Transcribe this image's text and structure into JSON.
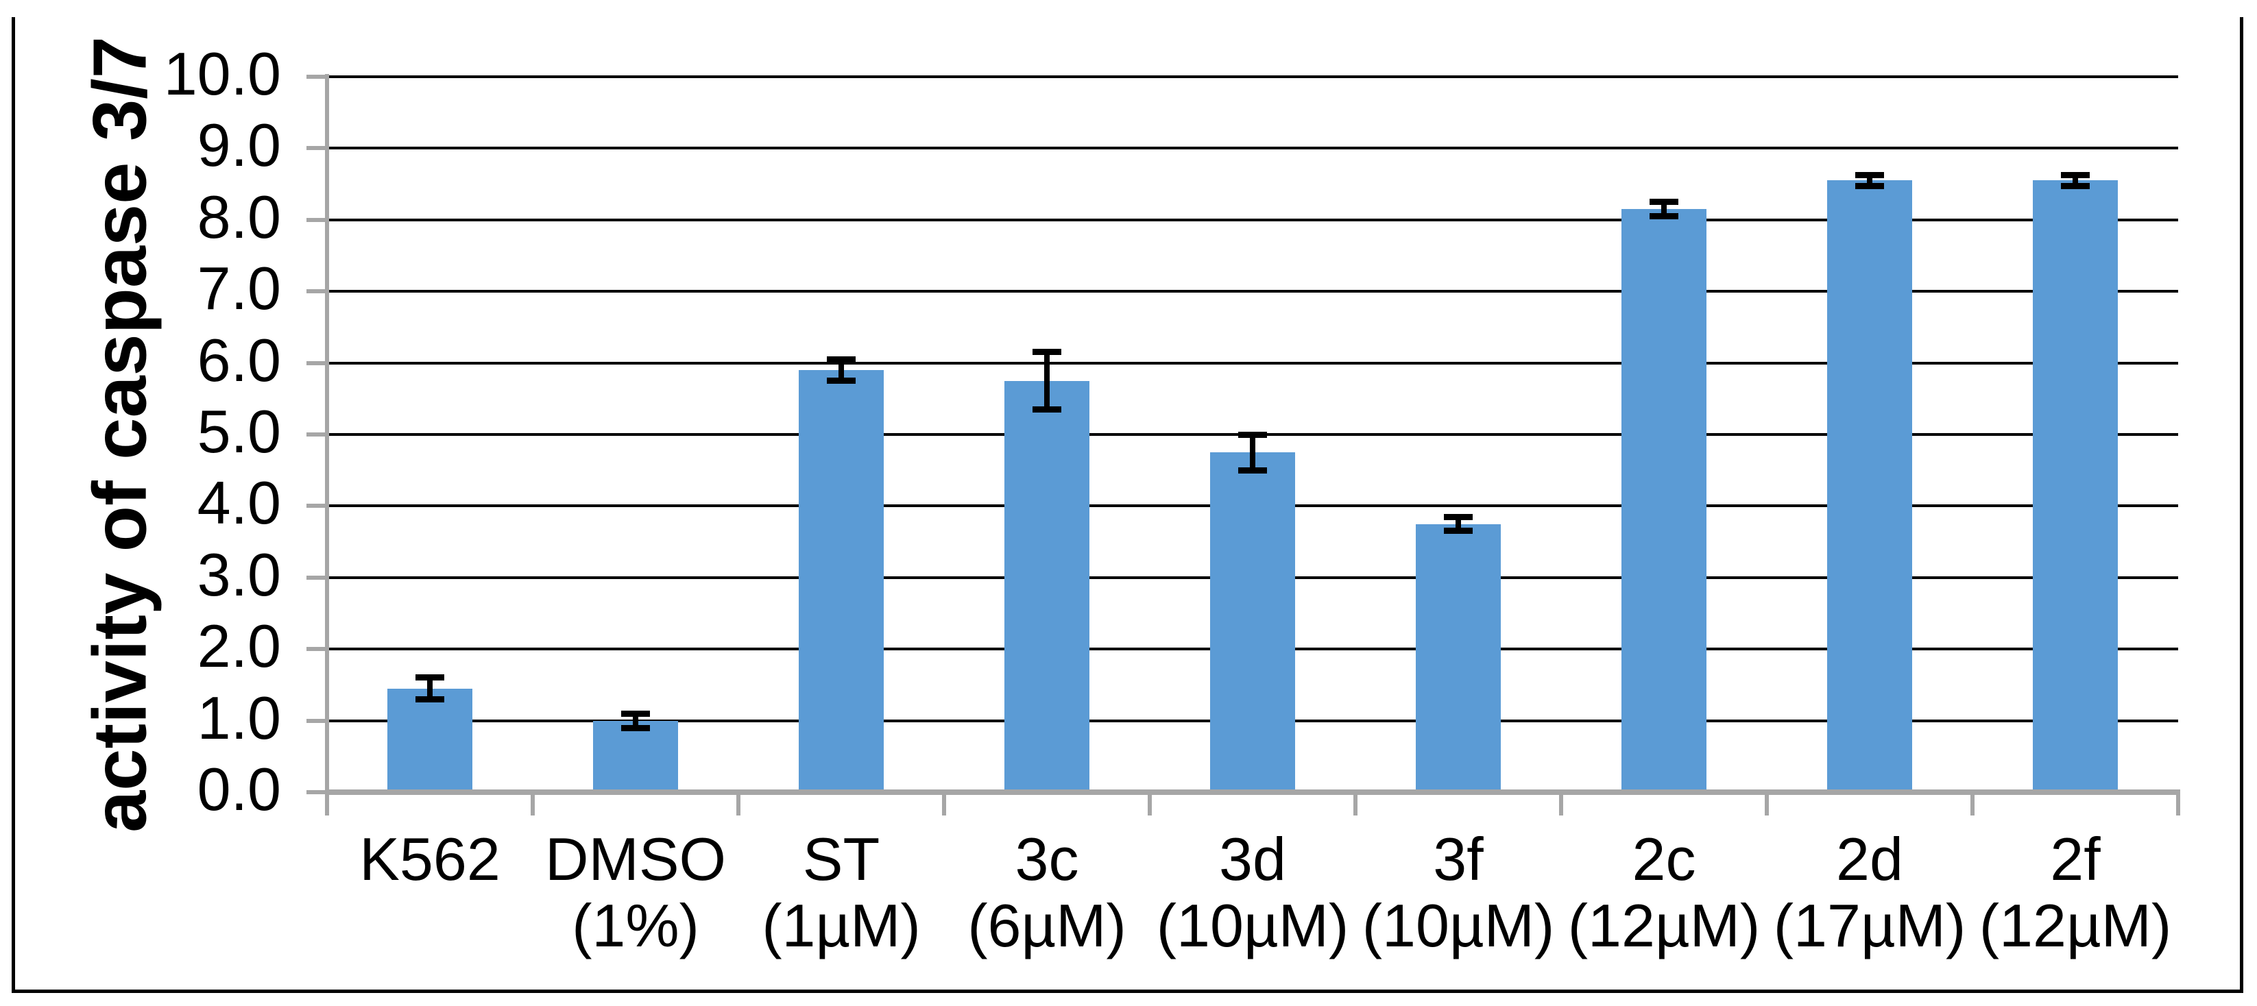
{
  "figure": {
    "background": "#FFFFFF",
    "border_color": "#000000"
  },
  "chart_data": {
    "type": "bar",
    "title": "",
    "ylabel": "activity of caspase 3/7",
    "xlabel": "",
    "categories": [
      "K562",
      "DMSO (1%)",
      "ST (1µM)",
      "3c (6µM)",
      "3d (10µM)",
      "3f (10µM)",
      "2c (12µM)",
      "2d (17µM)",
      "2f (12µM)"
    ],
    "category_lines": [
      [
        "K562",
        ""
      ],
      [
        "DMSO",
        "(1%)"
      ],
      [
        "ST",
        "(1µM)"
      ],
      [
        "3c",
        "(6µM)"
      ],
      [
        "3d",
        "(10µM)"
      ],
      [
        "3f",
        "(10µM)"
      ],
      [
        "2c",
        "(12µM)"
      ],
      [
        "2d",
        "(17µM)"
      ],
      [
        "2f",
        "(12µM)"
      ]
    ],
    "values": [
      1.45,
      1.0,
      5.9,
      5.75,
      4.75,
      3.75,
      8.15,
      8.55,
      8.55
    ],
    "errors": [
      0.15,
      0.1,
      0.15,
      0.4,
      0.25,
      0.1,
      0.1,
      0.08,
      0.08
    ],
    "ylim": [
      0,
      10
    ],
    "ytick_labels": [
      "0.0",
      "1.0",
      "2.0",
      "3.0",
      "4.0",
      "5.0",
      "6.0",
      "7.0",
      "8.0",
      "9.0",
      "10.0"
    ],
    "grid": true,
    "legend": null,
    "bar_color": "#5B9BD5",
    "axis_color": "#A6A6A6",
    "gridline_color": "#000000",
    "errorbar_color": "#000000",
    "text_color": "#000000"
  }
}
